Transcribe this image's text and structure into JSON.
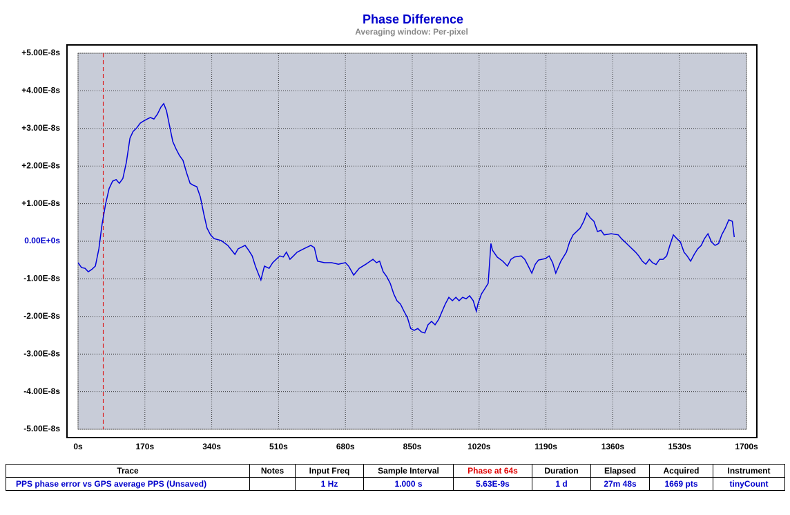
{
  "chart_data": {
    "type": "line",
    "title": "Phase Difference",
    "subtitle": "Averaging window: Per-pixel",
    "xlim": [
      0,
      1700
    ],
    "ylim": [
      -5e-08,
      5e-08
    ],
    "xticks": [
      {
        "value": 0,
        "label": "0s"
      },
      {
        "value": 170,
        "label": "170s"
      },
      {
        "value": 340,
        "label": "340s"
      },
      {
        "value": 510,
        "label": "510s"
      },
      {
        "value": 680,
        "label": "680s"
      },
      {
        "value": 850,
        "label": "850s"
      },
      {
        "value": 1020,
        "label": "1020s"
      },
      {
        "value": 1190,
        "label": "1190s"
      },
      {
        "value": 1360,
        "label": "1360s"
      },
      {
        "value": 1530,
        "label": "1530s"
      },
      {
        "value": 1700,
        "label": "1700s"
      }
    ],
    "yticks": [
      {
        "value": 5e-08,
        "label": "+5.00E-8s"
      },
      {
        "value": 4e-08,
        "label": "+4.00E-8s"
      },
      {
        "value": 3e-08,
        "label": "+3.00E-8s"
      },
      {
        "value": 2e-08,
        "label": "+2.00E-8s"
      },
      {
        "value": 1e-08,
        "label": "+1.00E-8s"
      },
      {
        "value": 0,
        "label": "0.00E+0s"
      },
      {
        "value": -1e-08,
        "label": "-1.00E-8s"
      },
      {
        "value": -2e-08,
        "label": "-2.00E-8s"
      },
      {
        "value": -3e-08,
        "label": "-3.00E-8s"
      },
      {
        "value": -4e-08,
        "label": "-4.00E-8s"
      },
      {
        "value": -5e-08,
        "label": "-5.00E-8s"
      }
    ],
    "grid": true,
    "cursor_x": 64,
    "cursor_color": "#e00000",
    "x": [
      0,
      9,
      18,
      26,
      35,
      44,
      53,
      61,
      70,
      79,
      88,
      97,
      105,
      114,
      123,
      132,
      140,
      149,
      158,
      167,
      176,
      184,
      193,
      202,
      211,
      218,
      225,
      232,
      241,
      249,
      258,
      267,
      276,
      285,
      293,
      302,
      311,
      320,
      328,
      337,
      346,
      364,
      381,
      399,
      407,
      425,
      434,
      443,
      451,
      460,
      465,
      474,
      486,
      495,
      504,
      513,
      522,
      530,
      539,
      548,
      557,
      574,
      592,
      601,
      609,
      627,
      645,
      662,
      680,
      688,
      701,
      715,
      732,
      750,
      759,
      767,
      776,
      785,
      794,
      803,
      811,
      820,
      829,
      838,
      846,
      855,
      864,
      873,
      882,
      890,
      899,
      908,
      917,
      926,
      934,
      943,
      952,
      961,
      969,
      978,
      987,
      996,
      1005,
      1013,
      1017,
      1026,
      1034,
      1043,
      1050,
      1054,
      1066,
      1080,
      1092,
      1101,
      1110,
      1127,
      1136,
      1145,
      1154,
      1163,
      1171,
      1189,
      1198,
      1207,
      1215,
      1228,
      1242,
      1250,
      1259,
      1268,
      1277,
      1286,
      1294,
      1303,
      1312,
      1321,
      1330,
      1338,
      1356,
      1374,
      1382,
      1391,
      1400,
      1409,
      1418,
      1426,
      1435,
      1444,
      1453,
      1461,
      1470,
      1479,
      1488,
      1497,
      1505,
      1514,
      1523,
      1532,
      1541,
      1549,
      1558,
      1567,
      1576,
      1585,
      1593,
      1602,
      1611,
      1620,
      1629,
      1637,
      1646,
      1655,
      1664,
      1669
    ],
    "series": [
      {
        "name": "PPS phase error vs GPS average PPS (Unsaved)",
        "color": "#0000dd",
        "values": [
          -5.7e-09,
          -7e-09,
          -7.2e-09,
          -8.1e-09,
          -7.5e-09,
          -6.6e-09,
          -2e-09,
          4.4e-09,
          9.9e-09,
          1.4e-08,
          1.6e-08,
          1.64e-08,
          1.54e-08,
          1.67e-08,
          2.1e-08,
          2.74e-08,
          2.92e-08,
          3.01e-08,
          3.14e-08,
          3.2e-08,
          3.25e-08,
          3.29e-08,
          3.25e-08,
          3.38e-08,
          3.57e-08,
          3.66e-08,
          3.47e-08,
          3.11e-08,
          2.65e-08,
          2.46e-08,
          2.28e-08,
          2.15e-08,
          1.82e-08,
          1.54e-08,
          1.49e-08,
          1.45e-08,
          1.18e-08,
          7.2e-09,
          3.5e-09,
          1.7e-09,
          7e-10,
          2e-10,
          -1.1e-09,
          -3.5e-09,
          -2e-09,
          -1.1e-09,
          -2.4e-09,
          -3.9e-09,
          -6.6e-09,
          -9e-09,
          -1.03e-08,
          -6.6e-09,
          -7.2e-09,
          -5.7e-09,
          -4.8e-09,
          -3.9e-09,
          -4.2e-09,
          -2.9e-09,
          -4.8e-09,
          -3.9e-09,
          -2.9e-09,
          -2e-09,
          -1.1e-09,
          -1.7e-09,
          -5.3e-09,
          -5.7e-09,
          -5.7e-09,
          -6.1e-09,
          -5.7e-09,
          -6.6e-09,
          -9e-09,
          -7.2e-09,
          -6.1e-09,
          -4.8e-09,
          -5.7e-09,
          -5.3e-09,
          -8.1e-09,
          -9.4e-09,
          -1.12e-08,
          -1.4e-08,
          -1.58e-08,
          -1.67e-08,
          -1.86e-08,
          -2.04e-08,
          -2.32e-08,
          -2.37e-08,
          -2.32e-08,
          -2.41e-08,
          -2.44e-08,
          -2.22e-08,
          -2.13e-08,
          -2.22e-08,
          -2.08e-08,
          -1.86e-08,
          -1.67e-08,
          -1.49e-08,
          -1.58e-08,
          -1.49e-08,
          -1.58e-08,
          -1.49e-08,
          -1.53e-08,
          -1.45e-08,
          -1.58e-08,
          -1.86e-08,
          -1.67e-08,
          -1.4e-08,
          -1.27e-08,
          -1.12e-08,
          -6e-10,
          -2.4e-09,
          -4.2e-09,
          -5.3e-09,
          -6.6e-09,
          -4.8e-09,
          -4.2e-09,
          -3.9e-09,
          -4.8e-09,
          -6.6e-09,
          -8.5e-09,
          -6.1e-09,
          -5e-09,
          -4.6e-09,
          -3.9e-09,
          -5.7e-09,
          -8.5e-09,
          -5.3e-09,
          -2.9e-09,
          -2e-10,
          1.7e-09,
          2.6e-09,
          3.5e-09,
          5.3e-09,
          7.5e-09,
          6.2e-09,
          5.3e-09,
          2.6e-09,
          2.9e-09,
          1.7e-09,
          2e-09,
          1.7e-09,
          7e-10,
          -2e-10,
          -1.1e-09,
          -2e-09,
          -2.9e-09,
          -3.9e-09,
          -5.3e-09,
          -6.1e-09,
          -4.8e-09,
          -5.7e-09,
          -6.2e-09,
          -4.8e-09,
          -4.8e-09,
          -3.9e-09,
          -1.1e-09,
          1.7e-09,
          7e-10,
          -2e-10,
          -2.9e-09,
          -3.9e-09,
          -5.3e-09,
          -3.5e-09,
          -2e-09,
          -1.1e-09,
          7e-10,
          2e-09,
          -2e-10,
          -1.1e-09,
          -6e-10,
          1.7e-09,
          3.5e-09,
          5.7e-09,
          5.3e-09,
          1.1e-09
        ]
      }
    ]
  },
  "table": {
    "columns": [
      "Trace",
      "Notes",
      "Input Freq",
      "Sample Interval",
      "Phase at 64s",
      "Duration",
      "Elapsed",
      "Acquired",
      "Instrument"
    ],
    "rows": [
      [
        "PPS phase error vs GPS average PPS (Unsaved)",
        "",
        "1 Hz",
        "1.000 s",
        "5.63E-9s",
        "1 d",
        "27m 48s",
        "1669 pts",
        "tinyCount"
      ]
    ]
  }
}
